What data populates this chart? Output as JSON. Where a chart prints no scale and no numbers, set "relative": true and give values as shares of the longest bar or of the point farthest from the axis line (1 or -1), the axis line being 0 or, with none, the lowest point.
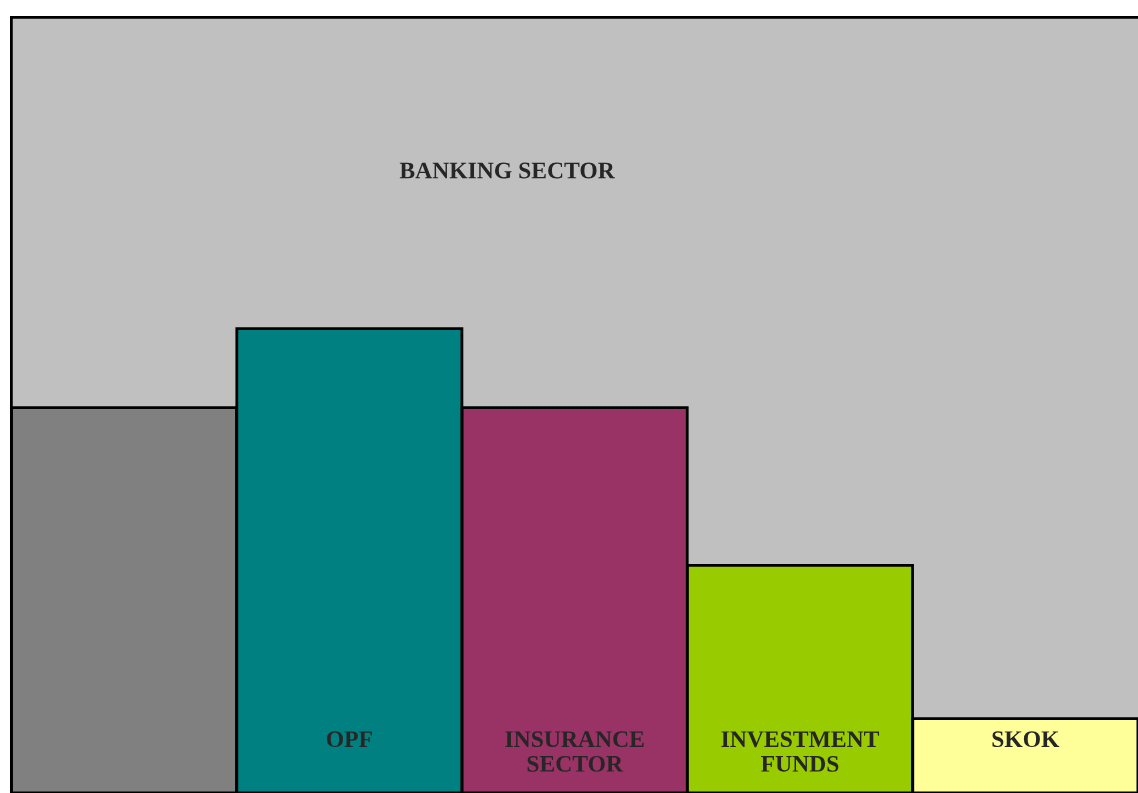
{
  "chart_data": {
    "type": "bar",
    "relative": true,
    "categories": [
      null,
      "OPF",
      "INSURANCE SECTOR",
      "INVESTMENT FUNDS",
      "SKOK"
    ],
    "colors": [
      "#808080",
      "#008080",
      "#993366",
      "#99cc00",
      "#ffff99"
    ],
    "values": [
      0.83,
      1,
      0.83,
      0.49,
      0.16
    ],
    "bands": [
      {
        "axis": "y",
        "from": 0,
        "to": 1.67,
        "label": "BANKING SECTOR",
        "color": "#c0c0c0"
      }
    ]
  }
}
